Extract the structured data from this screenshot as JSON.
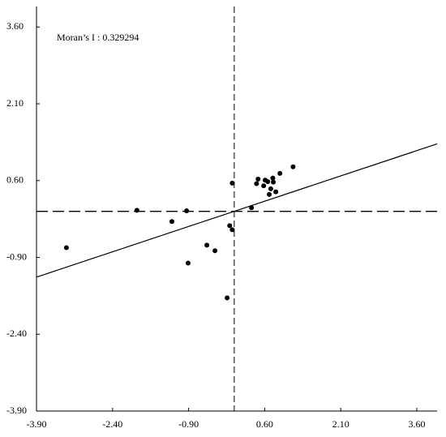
{
  "chart_data": {
    "type": "scatter",
    "morans_i": {
      "value": 0.329294,
      "label": "Moran’s I : 0.329294"
    },
    "x": [
      -3.31,
      -1.92,
      -1.23,
      -0.94,
      -0.91,
      -0.54,
      -0.38,
      -0.14,
      -0.09,
      -0.04,
      -0.04,
      0.34,
      0.44,
      0.47,
      0.58,
      0.61,
      0.66,
      0.69,
      0.72,
      0.76,
      0.77,
      0.82,
      0.9,
      1.16
    ],
    "values": [
      -0.71,
      0.02,
      -0.2,
      0.01,
      -1.01,
      -0.66,
      -0.77,
      -1.69,
      -0.28,
      -0.36,
      0.55,
      0.07,
      0.54,
      0.63,
      0.5,
      0.61,
      0.58,
      0.33,
      0.44,
      0.65,
      0.57,
      0.38,
      0.74,
      0.87
    ],
    "color": "#000000",
    "xlim": [
      -3.9,
      4.0
    ],
    "ylim": [
      -3.9,
      4.0
    ],
    "xticks": [
      {
        "value": -3.9,
        "label": "-3.90"
      },
      {
        "value": -2.4,
        "label": "-2.40"
      },
      {
        "value": -0.9,
        "label": "-0.90"
      },
      {
        "value": 0.6,
        "label": "0.60"
      },
      {
        "value": 2.1,
        "label": "2.10"
      },
      {
        "value": 3.6,
        "label": "3.60"
      }
    ],
    "yticks": [
      {
        "value": -3.9,
        "label": "-3.90"
      },
      {
        "value": -2.4,
        "label": "-2.40"
      },
      {
        "value": -0.9,
        "label": "-0.90"
      },
      {
        "value": 0.6,
        "label": "0.60"
      },
      {
        "value": 2.1,
        "label": "2.10"
      },
      {
        "value": 3.6,
        "label": "3.60"
      }
    ]
  }
}
